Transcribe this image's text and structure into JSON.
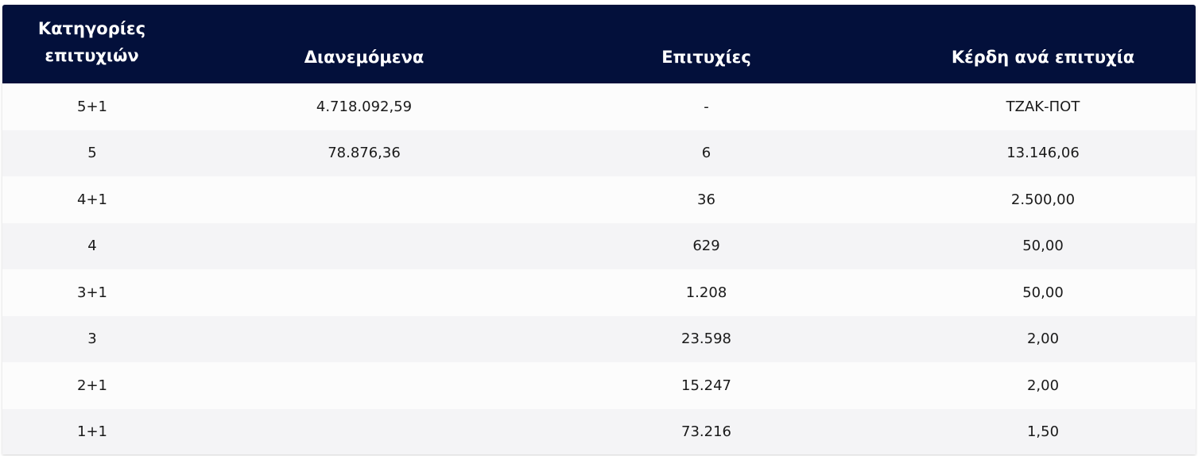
{
  "table": {
    "headers": {
      "category_line1": "Κατηγορίες",
      "category_line2": "επιτυχιών",
      "distributed": "Διανεμόμενα",
      "winners": "Επιτυχίες",
      "prize_per_winner": "Κέρδη ανά επιτυχία"
    },
    "rows": [
      {
        "category": "5+1",
        "distributed": "4.718.092,59",
        "winners": "-",
        "prize": "ΤΖΑΚ-ΠΟΤ"
      },
      {
        "category": "5",
        "distributed": "78.876,36",
        "winners": "6",
        "prize": "13.146,06"
      },
      {
        "category": "4+1",
        "distributed": "",
        "winners": "36",
        "prize": "2.500,00"
      },
      {
        "category": "4",
        "distributed": "",
        "winners": "629",
        "prize": "50,00"
      },
      {
        "category": "3+1",
        "distributed": "",
        "winners": "1.208",
        "prize": "50,00"
      },
      {
        "category": "3",
        "distributed": "",
        "winners": "23.598",
        "prize": "2,00"
      },
      {
        "category": "2+1",
        "distributed": "",
        "winners": "15.247",
        "prize": "2,00"
      },
      {
        "category": "1+1",
        "distributed": "",
        "winners": "73.216",
        "prize": "1,50"
      }
    ]
  },
  "colors": {
    "header_bg": "#03103b",
    "row_odd": "#fcfcfc",
    "row_even": "#f4f4f6"
  }
}
